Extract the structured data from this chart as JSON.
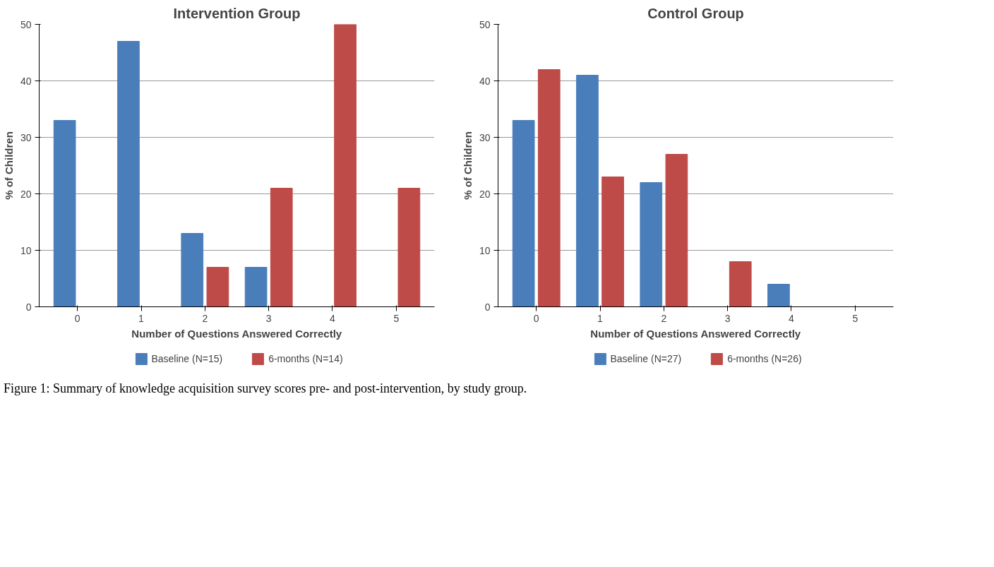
{
  "chart_data": [
    {
      "type": "bar",
      "title": "Intervention Group",
      "xlabel": "Number of Questions Answered Correctly",
      "ylabel": "% of Children",
      "categories": [
        "0",
        "1",
        "2",
        "3",
        "4",
        "5"
      ],
      "ylim": [
        0,
        50
      ],
      "yticks": [
        0,
        10,
        20,
        30,
        40,
        50
      ],
      "grid": "y",
      "legend": "bottom",
      "series": [
        {
          "name": "Baseline (N=15)",
          "color": "#4a7ebb",
          "values": [
            33,
            47,
            13,
            7,
            0,
            0
          ]
        },
        {
          "name": "6-months (N=14)",
          "color": "#be4b48",
          "values": [
            0,
            0,
            7,
            21,
            50,
            21
          ]
        }
      ]
    },
    {
      "type": "bar",
      "title": "Control Group",
      "xlabel": "Number of Questions Answered Correctly",
      "ylabel": "% of Children",
      "categories": [
        "0",
        "1",
        "2",
        "3",
        "4",
        "5"
      ],
      "ylim": [
        0,
        50
      ],
      "yticks": [
        0,
        10,
        20,
        30,
        40,
        50
      ],
      "grid": "y",
      "legend": "bottom",
      "annotations": [
        "Figure 1: Summary of knowledge acquisition survey scores pre- and post-intervention, by study group."
      ],
      "series": [
        {
          "name": "Baseline (N=27)",
          "color": "#4a7ebb",
          "values": [
            33,
            41,
            22,
            0,
            4,
            0
          ]
        },
        {
          "name": "6-months (N=26)",
          "color": "#be4b48",
          "values": [
            42,
            23,
            27,
            8,
            0,
            0
          ]
        }
      ]
    }
  ]
}
